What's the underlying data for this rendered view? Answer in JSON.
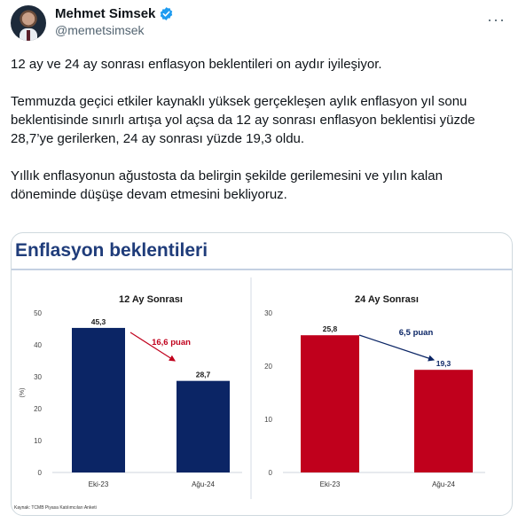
{
  "author": {
    "name": "Mehmet Simsek",
    "handle": "@memetsimsek",
    "verified": true
  },
  "tweet": {
    "paragraphs": [
      "12 ay ve 24 ay sonrası enflasyon beklentileri on aydır iyileşiyor.",
      "Temmuzda geçici etkiler kaynaklı yüksek gerçekleşen aylık enflasyon yıl sonu beklentisinde sınırlı artışa yol açsa da 12 ay sonrası enflasyon beklentisi yüzde 28,7’ye gerilerken, 24 ay sonrası yüzde 19,3 oldu.",
      "Yıllık enflasyonun ağustosta da belirgin şekilde gerilemesini ve yılın kalan döneminde düşüşe devam etmesini bekliyoruz."
    ]
  },
  "media": {
    "title": "Enflasyon beklentileri",
    "source_note": "Kaynak: TCMB Piyasa Katılımcıları Anketi"
  },
  "chart_data": [
    {
      "type": "bar",
      "title": "12 Ay Sonrası",
      "ylabel": "(%)",
      "categories": [
        "Eki-23",
        "Ağu-24"
      ],
      "values": [
        45.3,
        28.7
      ],
      "value_labels": [
        "45,3",
        "28,7"
      ],
      "ylim": [
        0,
        50
      ],
      "yticks": [
        0,
        10,
        20,
        30,
        40,
        50
      ],
      "bar_colors": [
        "#0b2565",
        "#0b2565"
      ],
      "annotation": {
        "text": "16,6 puan",
        "color": "#c0001c"
      },
      "grid": false
    },
    {
      "type": "bar",
      "title": "24 Ay Sonrası",
      "ylabel": "",
      "categories": [
        "Eki-23",
        "Ağu-24"
      ],
      "values": [
        25.8,
        19.3
      ],
      "value_labels": [
        "25,8",
        "19,3"
      ],
      "ylim": [
        0,
        30
      ],
      "yticks": [
        0,
        10,
        20,
        30
      ],
      "bar_colors": [
        "#c0001c",
        "#c0001c"
      ],
      "annotation": {
        "text": "6,5 puan",
        "color": "#0b2565"
      },
      "grid": false
    }
  ],
  "colors": {
    "title_blue": "#1f3c7a",
    "navy": "#0b2565",
    "red": "#c0001c",
    "verified_blue": "#1d9bf0"
  }
}
